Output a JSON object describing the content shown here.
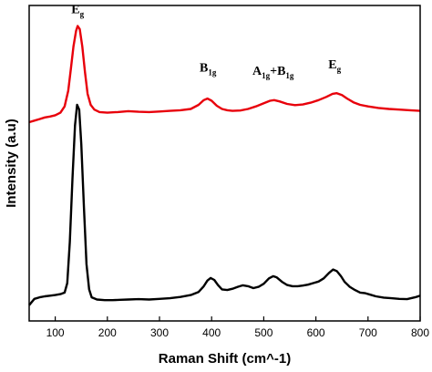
{
  "chart_data": {
    "type": "line",
    "title": "",
    "xlabel": "Raman Shift (cm^-1)",
    "ylabel": "Intensity (a.u)",
    "xlim": [
      50,
      800
    ],
    "ylim": [
      0,
      1
    ],
    "x_ticks": [
      100,
      200,
      300,
      400,
      500,
      600,
      700,
      800
    ],
    "y_ticks_shown": false,
    "grid": false,
    "legend": "none",
    "series": [
      {
        "color": "#e8000b",
        "points": [
          [
            50,
            0.63
          ],
          [
            60,
            0.635
          ],
          [
            70,
            0.64
          ],
          [
            80,
            0.645
          ],
          [
            90,
            0.648
          ],
          [
            100,
            0.652
          ],
          [
            110,
            0.66
          ],
          [
            118,
            0.68
          ],
          [
            125,
            0.73
          ],
          [
            130,
            0.8
          ],
          [
            135,
            0.87
          ],
          [
            140,
            0.92
          ],
          [
            143,
            0.935
          ],
          [
            147,
            0.925
          ],
          [
            152,
            0.87
          ],
          [
            157,
            0.79
          ],
          [
            162,
            0.72
          ],
          [
            168,
            0.685
          ],
          [
            175,
            0.67
          ],
          [
            185,
            0.662
          ],
          [
            200,
            0.66
          ],
          [
            220,
            0.662
          ],
          [
            240,
            0.665
          ],
          [
            260,
            0.663
          ],
          [
            280,
            0.662
          ],
          [
            300,
            0.664
          ],
          [
            320,
            0.666
          ],
          [
            340,
            0.668
          ],
          [
            360,
            0.672
          ],
          [
            375,
            0.685
          ],
          [
            385,
            0.7
          ],
          [
            392,
            0.705
          ],
          [
            400,
            0.698
          ],
          [
            410,
            0.682
          ],
          [
            420,
            0.672
          ],
          [
            430,
            0.668
          ],
          [
            440,
            0.666
          ],
          [
            455,
            0.667
          ],
          [
            470,
            0.672
          ],
          [
            485,
            0.68
          ],
          [
            500,
            0.69
          ],
          [
            512,
            0.698
          ],
          [
            520,
            0.7
          ],
          [
            530,
            0.696
          ],
          [
            545,
            0.688
          ],
          [
            560,
            0.684
          ],
          [
            575,
            0.686
          ],
          [
            590,
            0.692
          ],
          [
            605,
            0.7
          ],
          [
            620,
            0.71
          ],
          [
            632,
            0.72
          ],
          [
            640,
            0.722
          ],
          [
            650,
            0.716
          ],
          [
            660,
            0.705
          ],
          [
            672,
            0.693
          ],
          [
            685,
            0.685
          ],
          [
            700,
            0.68
          ],
          [
            720,
            0.675
          ],
          [
            740,
            0.672
          ],
          [
            760,
            0.67
          ],
          [
            780,
            0.668
          ],
          [
            800,
            0.666
          ]
        ]
      },
      {
        "color": "#000000",
        "points": [
          [
            50,
            0.05
          ],
          [
            60,
            0.07
          ],
          [
            70,
            0.075
          ],
          [
            80,
            0.078
          ],
          [
            90,
            0.08
          ],
          [
            100,
            0.082
          ],
          [
            110,
            0.085
          ],
          [
            118,
            0.09
          ],
          [
            123,
            0.12
          ],
          [
            128,
            0.25
          ],
          [
            133,
            0.45
          ],
          [
            138,
            0.62
          ],
          [
            142,
            0.685
          ],
          [
            146,
            0.67
          ],
          [
            150,
            0.56
          ],
          [
            155,
            0.36
          ],
          [
            160,
            0.18
          ],
          [
            165,
            0.1
          ],
          [
            170,
            0.075
          ],
          [
            180,
            0.068
          ],
          [
            195,
            0.066
          ],
          [
            210,
            0.066
          ],
          [
            225,
            0.067
          ],
          [
            240,
            0.068
          ],
          [
            260,
            0.069
          ],
          [
            280,
            0.068
          ],
          [
            300,
            0.07
          ],
          [
            320,
            0.072
          ],
          [
            340,
            0.076
          ],
          [
            360,
            0.082
          ],
          [
            375,
            0.092
          ],
          [
            385,
            0.11
          ],
          [
            392,
            0.128
          ],
          [
            398,
            0.136
          ],
          [
            405,
            0.13
          ],
          [
            412,
            0.114
          ],
          [
            420,
            0.1
          ],
          [
            430,
            0.098
          ],
          [
            440,
            0.102
          ],
          [
            450,
            0.108
          ],
          [
            460,
            0.113
          ],
          [
            470,
            0.11
          ],
          [
            480,
            0.104
          ],
          [
            490,
            0.108
          ],
          [
            500,
            0.118
          ],
          [
            510,
            0.135
          ],
          [
            518,
            0.142
          ],
          [
            525,
            0.138
          ],
          [
            535,
            0.124
          ],
          [
            545,
            0.114
          ],
          [
            555,
            0.11
          ],
          [
            565,
            0.11
          ],
          [
            575,
            0.112
          ],
          [
            585,
            0.115
          ],
          [
            595,
            0.12
          ],
          [
            605,
            0.125
          ],
          [
            615,
            0.135
          ],
          [
            625,
            0.152
          ],
          [
            633,
            0.163
          ],
          [
            640,
            0.158
          ],
          [
            648,
            0.142
          ],
          [
            655,
            0.124
          ],
          [
            665,
            0.108
          ],
          [
            675,
            0.098
          ],
          [
            685,
            0.09
          ],
          [
            695,
            0.088
          ],
          [
            705,
            0.083
          ],
          [
            715,
            0.078
          ],
          [
            730,
            0.074
          ],
          [
            745,
            0.072
          ],
          [
            760,
            0.07
          ],
          [
            775,
            0.069
          ],
          [
            790,
            0.075
          ],
          [
            800,
            0.08
          ]
        ]
      }
    ],
    "annotations": [
      {
        "base": "E",
        "sub": "g",
        "x": 143,
        "y": 0.975
      },
      {
        "base": "B",
        "sub": "1g",
        "x": 393,
        "y": 0.79
      },
      {
        "base": "A",
        "sub": "1g",
        "join": "+",
        "base2": "B",
        "sub2": "1g",
        "x": 518,
        "y": 0.78
      },
      {
        "base": "E",
        "sub": "g",
        "x": 636,
        "y": 0.8
      }
    ]
  }
}
